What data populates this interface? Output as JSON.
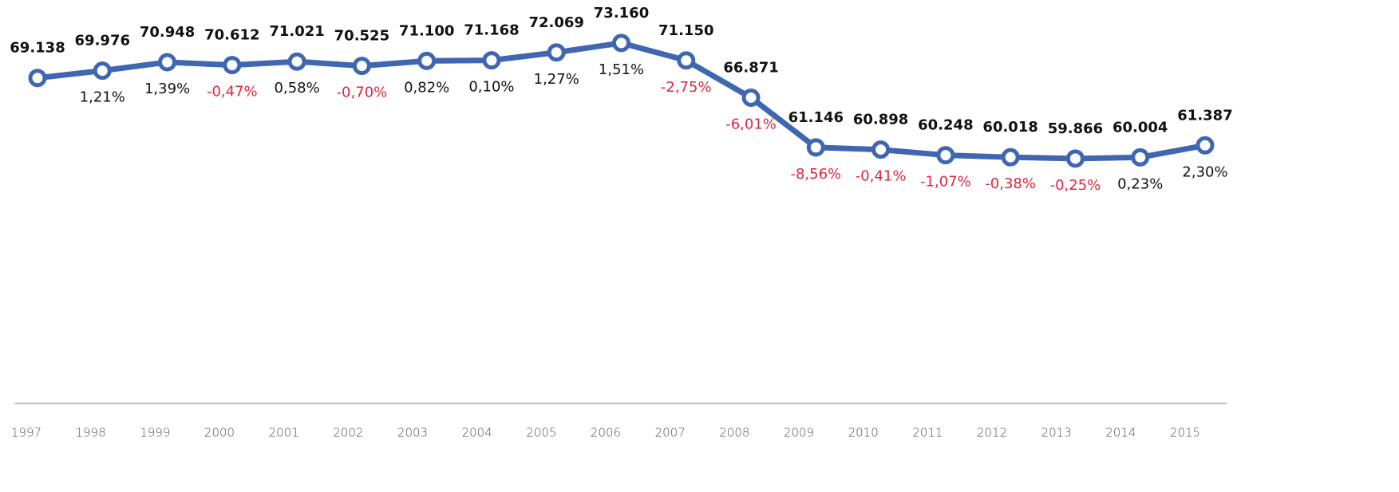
{
  "chart_data": {
    "type": "line",
    "categories": [
      "1997",
      "1998",
      "1999",
      "2000",
      "2001",
      "2002",
      "2003",
      "2004",
      "2005",
      "2006",
      "2007",
      "2008",
      "2009",
      "2010",
      "2011",
      "2012",
      "2013",
      "2014",
      "2015"
    ],
    "values": [
      69138,
      69976,
      70948,
      70612,
      71021,
      70525,
      71100,
      71168,
      72069,
      73160,
      71150,
      66871,
      61146,
      60898,
      60248,
      60018,
      59866,
      60004,
      61387
    ],
    "value_labels": [
      "69.138",
      "69.976",
      "70.948",
      "70.612",
      "71.021",
      "70.525",
      "71.100",
      "71.168",
      "72.069",
      "73.160",
      "71.150",
      "66.871",
      "61.146",
      "60.898",
      "60.248",
      "60.018",
      "59.866",
      "60.004",
      "61.387"
    ],
    "change_labels": [
      null,
      "1,21%",
      "1,39%",
      "-0,47%",
      "0,58%",
      "-0,70%",
      "0,82%",
      "0,10%",
      "1,27%",
      "1,51%",
      "-2,75%",
      "-6,01%",
      "-8,56%",
      "-0,41%",
      "-1,07%",
      "-0,38%",
      "-0,25%",
      "0,23%",
      "2,30%"
    ],
    "color": "#3f67b1",
    "positive_color": "#111111",
    "negative_color": "#e0263e",
    "ylim": [
      31700,
      78100
    ]
  }
}
